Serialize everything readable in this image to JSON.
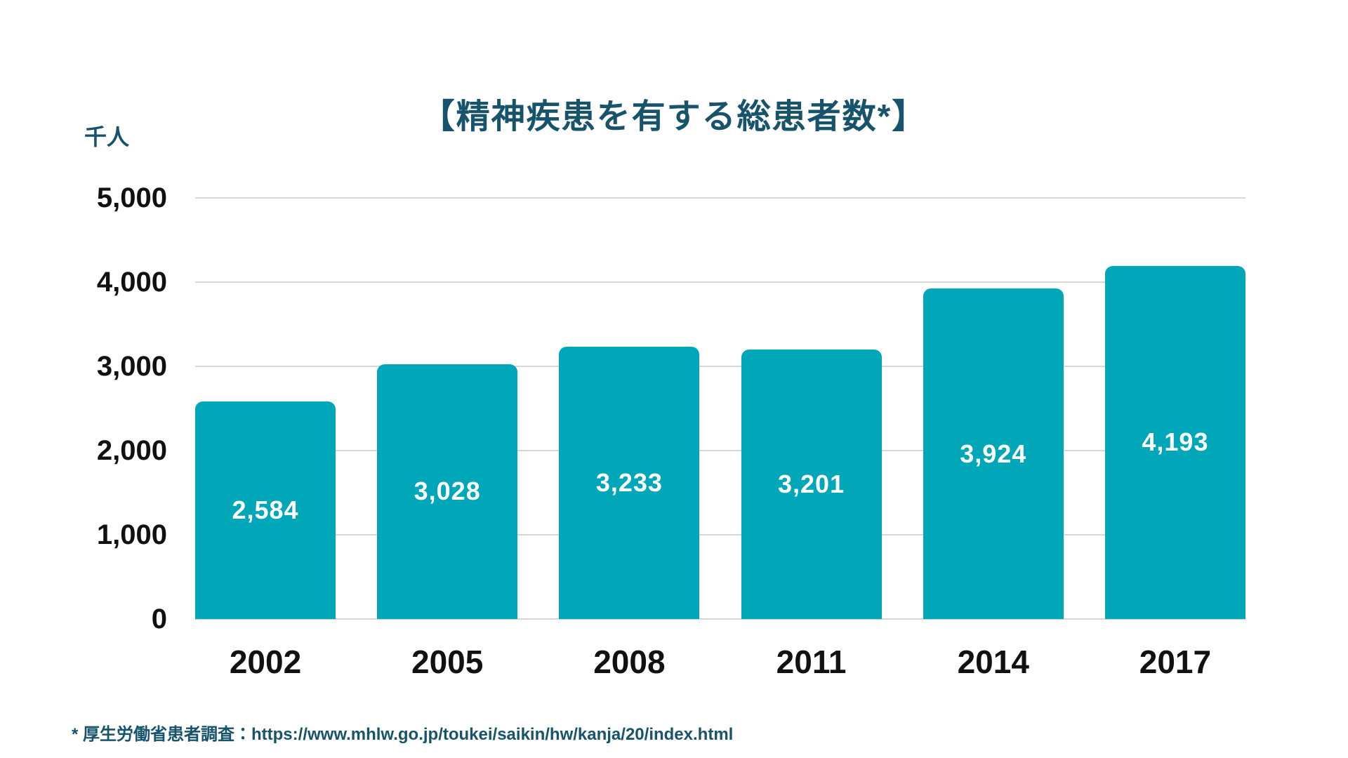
{
  "chart_data": {
    "type": "bar",
    "title": "【精神疾患を有する総患者数*】",
    "unit_label": "千人",
    "categories": [
      "2002",
      "2005",
      "2008",
      "2011",
      "2014",
      "2017"
    ],
    "values": [
      2584,
      3028,
      3233,
      3201,
      3924,
      4193
    ],
    "value_labels": [
      "2,584",
      "3,028",
      "3,233",
      "3,201",
      "3,924",
      "4,193"
    ],
    "ylim": [
      0,
      5000
    ],
    "yticks": [
      0,
      1000,
      2000,
      3000,
      4000,
      5000
    ],
    "ytick_labels": [
      "0",
      "1,000",
      "2,000",
      "3,000",
      "4,000",
      "5,000"
    ],
    "grid": true,
    "legend": "none",
    "bar_color": "#00a7b8",
    "title_color": "#17536a",
    "grid_color": "#d7d7d7",
    "bar_label_color": "#ffffff"
  },
  "footer": {
    "source_note": "* 厚生労働省患者調査：https://www.mhlw.go.jp/toukei/saikin/hw/kanja/20/index.html"
  }
}
